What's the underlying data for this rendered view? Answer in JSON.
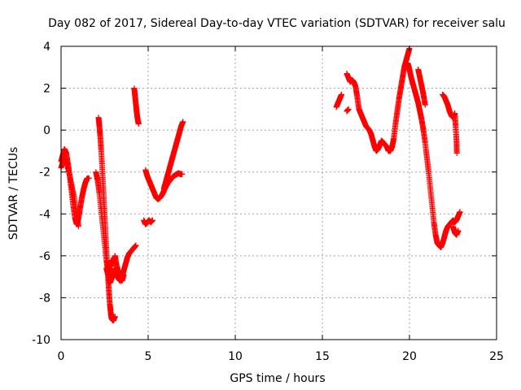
{
  "chart_data": {
    "type": "scatter",
    "title": "Day 082 of 2017, Sidereal Day-to-day VTEC variation (SDTVAR) for receiver salu",
    "xlabel": "GPS time / hours",
    "ylabel": "SDTVAR / TECUs",
    "xlim": [
      0,
      25
    ],
    "ylim": [
      -10,
      4
    ],
    "xticks": [
      "0",
      "5",
      "10",
      "15",
      "20",
      "25"
    ],
    "yticks": [
      "4",
      "2",
      "0",
      "-2",
      "-4",
      "-6",
      "-8",
      "-10"
    ],
    "grid": true,
    "marker": "+",
    "color": "#ff0000",
    "series": [
      {
        "segments": [
          [
            [
              0.0,
              -1.5
            ],
            [
              0.1,
              -1.2
            ],
            [
              0.2,
              -0.9
            ],
            [
              0.3,
              -1.1
            ],
            [
              0.4,
              -1.6
            ],
            [
              0.5,
              -2.2
            ],
            [
              0.6,
              -2.9
            ],
            [
              0.7,
              -3.6
            ],
            [
              0.8,
              -4.2
            ],
            [
              0.9,
              -4.5
            ],
            [
              1.0,
              -4.2
            ],
            [
              1.1,
              -3.7
            ],
            [
              1.2,
              -3.2
            ],
            [
              1.3,
              -2.8
            ],
            [
              1.4,
              -2.5
            ],
            [
              1.5,
              -2.3
            ],
            [
              1.6,
              -2.3
            ]
          ],
          [
            [
              0.0,
              -1.8
            ],
            [
              0.15,
              -1.4
            ],
            [
              0.3,
              -1.5
            ],
            [
              0.45,
              -2.0
            ],
            [
              0.6,
              -2.6
            ],
            [
              0.75,
              -3.2
            ],
            [
              0.9,
              -4.0
            ],
            [
              1.0,
              -4.6
            ]
          ],
          [
            [
              2.0,
              -2.0
            ],
            [
              2.1,
              -2.4
            ],
            [
              2.2,
              -3.0
            ],
            [
              2.3,
              -3.8
            ],
            [
              2.4,
              -4.6
            ],
            [
              2.5,
              -5.4
            ],
            [
              2.6,
              -6.2
            ],
            [
              2.7,
              -6.8
            ],
            [
              2.8,
              -7.3
            ],
            [
              2.9,
              -7.1
            ],
            [
              3.0,
              -6.9
            ],
            [
              3.1,
              -6.6
            ],
            [
              3.2,
              -6.9
            ],
            [
              3.3,
              -7.1
            ],
            [
              3.4,
              -7.2
            ],
            [
              3.5,
              -7.0
            ],
            [
              3.6,
              -6.7
            ],
            [
              3.7,
              -6.4
            ],
            [
              3.8,
              -6.1
            ],
            [
              3.9,
              -5.9
            ],
            [
              4.0,
              -5.8
            ],
            [
              4.1,
              -5.7
            ],
            [
              4.2,
              -5.6
            ],
            [
              4.3,
              -5.5
            ]
          ],
          [
            [
              2.15,
              0.6
            ],
            [
              2.2,
              0.2
            ],
            [
              2.25,
              -0.3
            ],
            [
              2.3,
              -0.9
            ],
            [
              2.35,
              -1.6
            ],
            [
              2.4,
              -2.4
            ],
            [
              2.45,
              -3.2
            ],
            [
              2.5,
              -4.0
            ],
            [
              2.55,
              -4.8
            ],
            [
              2.6,
              -5.6
            ],
            [
              2.65,
              -6.4
            ],
            [
              2.7,
              -7.1
            ],
            [
              2.75,
              -7.7
            ],
            [
              2.8,
              -8.3
            ],
            [
              2.85,
              -8.7
            ],
            [
              2.9,
              -9.0
            ],
            [
              3.0,
              -9.1
            ],
            [
              3.1,
              -8.9
            ]
          ],
          [
            [
              2.6,
              -6.6
            ],
            [
              2.7,
              -6.9
            ],
            [
              2.8,
              -6.5
            ],
            [
              2.9,
              -6.2
            ],
            [
              3.0,
              -6.4
            ],
            [
              3.1,
              -6.0
            ],
            [
              3.2,
              -6.5
            ],
            [
              3.3,
              -6.8
            ],
            [
              3.4,
              -7.0
            ],
            [
              3.5,
              -7.2
            ],
            [
              3.6,
              -6.9
            ]
          ],
          [
            [
              4.2,
              2.0
            ],
            [
              4.25,
              1.6
            ],
            [
              4.3,
              1.2
            ],
            [
              4.35,
              0.8
            ],
            [
              4.4,
              0.5
            ],
            [
              4.45,
              0.3
            ]
          ],
          [
            [
              4.75,
              -4.3
            ],
            [
              4.85,
              -4.5
            ],
            [
              4.95,
              -4.4
            ],
            [
              5.05,
              -4.3
            ],
            [
              5.15,
              -4.4
            ],
            [
              5.25,
              -4.3
            ]
          ],
          [
            [
              4.85,
              -1.9
            ],
            [
              4.95,
              -2.2
            ],
            [
              5.05,
              -2.4
            ],
            [
              5.15,
              -2.6
            ],
            [
              5.25,
              -2.8
            ],
            [
              5.35,
              -3.0
            ],
            [
              5.45,
              -3.2
            ],
            [
              5.55,
              -3.3
            ],
            [
              5.65,
              -3.25
            ],
            [
              5.75,
              -3.15
            ],
            [
              5.85,
              -3.0
            ],
            [
              5.95,
              -2.8
            ],
            [
              6.05,
              -2.65
            ],
            [
              6.15,
              -2.5
            ],
            [
              6.25,
              -2.4
            ],
            [
              6.35,
              -2.3
            ],
            [
              6.45,
              -2.2
            ],
            [
              6.55,
              -2.15
            ],
            [
              6.65,
              -2.1
            ],
            [
              6.75,
              -2.05
            ],
            [
              6.85,
              -2.1
            ],
            [
              6.95,
              -2.1
            ]
          ],
          [
            [
              5.9,
              -2.8
            ],
            [
              6.0,
              -2.5
            ],
            [
              6.1,
              -2.2
            ],
            [
              6.2,
              -1.9
            ],
            [
              6.3,
              -1.6
            ],
            [
              6.4,
              -1.3
            ],
            [
              6.5,
              -1.0
            ],
            [
              6.6,
              -0.7
            ],
            [
              6.7,
              -0.4
            ],
            [
              6.8,
              -0.1
            ],
            [
              6.9,
              0.2
            ],
            [
              7.0,
              0.4
            ]
          ],
          [
            [
              15.8,
              1.1
            ],
            [
              15.9,
              1.3
            ],
            [
              16.0,
              1.5
            ],
            [
              16.1,
              1.7
            ]
          ],
          [
            [
              16.4,
              0.9
            ],
            [
              16.5,
              1.0
            ]
          ],
          [
            [
              16.4,
              2.7
            ],
            [
              16.5,
              2.5
            ],
            [
              16.6,
              2.3
            ],
            [
              16.7,
              2.4
            ],
            [
              16.8,
              2.3
            ],
            [
              16.9,
              2.1
            ],
            [
              17.0,
              1.6
            ],
            [
              17.1,
              1.0
            ],
            [
              17.2,
              0.8
            ],
            [
              17.3,
              0.6
            ],
            [
              17.4,
              0.4
            ],
            [
              17.5,
              0.2
            ],
            [
              17.6,
              0.1
            ],
            [
              17.7,
              0.0
            ],
            [
              17.8,
              -0.2
            ],
            [
              17.9,
              -0.5
            ],
            [
              18.0,
              -0.8
            ],
            [
              18.1,
              -1.0
            ],
            [
              18.2,
              -0.9
            ],
            [
              18.3,
              -0.7
            ],
            [
              18.4,
              -0.5
            ],
            [
              18.5,
              -0.6
            ],
            [
              18.6,
              -0.7
            ],
            [
              18.7,
              -0.8
            ],
            [
              18.8,
              -1.0
            ],
            [
              18.9,
              -1.0
            ],
            [
              19.0,
              -0.8
            ],
            [
              19.1,
              -0.4
            ],
            [
              19.2,
              0.3
            ],
            [
              19.3,
              0.9
            ],
            [
              19.4,
              1.5
            ],
            [
              19.5,
              2.0
            ],
            [
              19.6,
              2.5
            ],
            [
              19.7,
              3.0
            ],
            [
              19.8,
              3.3
            ],
            [
              19.9,
              3.6
            ],
            [
              20.0,
              3.9
            ]
          ],
          [
            [
              19.9,
              3.2
            ],
            [
              20.0,
              2.9
            ],
            [
              20.1,
              2.5
            ],
            [
              20.2,
              2.2
            ],
            [
              20.3,
              1.9
            ],
            [
              20.4,
              1.6
            ],
            [
              20.5,
              1.3
            ],
            [
              20.6,
              0.9
            ],
            [
              20.7,
              0.5
            ],
            [
              20.8,
              0.0
            ],
            [
              20.9,
              -0.6
            ],
            [
              21.0,
              -1.3
            ],
            [
              21.1,
              -2.0
            ],
            [
              21.2,
              -2.8
            ],
            [
              21.3,
              -3.6
            ],
            [
              21.4,
              -4.4
            ],
            [
              21.5,
              -5.0
            ],
            [
              21.6,
              -5.4
            ],
            [
              21.7,
              -5.5
            ],
            [
              21.8,
              -5.6
            ],
            [
              21.9,
              -5.4
            ],
            [
              22.0,
              -5.1
            ],
            [
              22.1,
              -4.8
            ],
            [
              22.2,
              -4.6
            ],
            [
              22.3,
              -4.5
            ],
            [
              22.4,
              -4.4
            ],
            [
              22.5,
              -4.3
            ],
            [
              22.6,
              -4.4
            ],
            [
              22.7,
              -4.3
            ],
            [
              22.8,
              -4.1
            ],
            [
              22.9,
              -3.9
            ]
          ],
          [
            [
              20.5,
              2.9
            ],
            [
              20.6,
              2.5
            ],
            [
              20.7,
              2.1
            ],
            [
              20.8,
              1.7
            ],
            [
              20.9,
              1.2
            ]
          ],
          [
            [
              21.9,
              1.7
            ],
            [
              22.0,
              1.6
            ],
            [
              22.1,
              1.4
            ],
            [
              22.2,
              1.2
            ],
            [
              22.3,
              0.9
            ],
            [
              22.4,
              0.7
            ],
            [
              22.5,
              0.6
            ],
            [
              22.6,
              0.8
            ],
            [
              22.65,
              0.2
            ],
            [
              22.7,
              -0.5
            ],
            [
              22.72,
              -1.1
            ]
          ],
          [
            [
              22.5,
              -4.6
            ],
            [
              22.6,
              -4.9
            ],
            [
              22.7,
              -5.0
            ],
            [
              22.8,
              -4.8
            ]
          ]
        ]
      }
    ]
  }
}
